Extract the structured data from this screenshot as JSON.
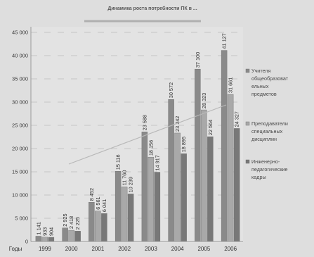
{
  "chart_data": {
    "type": "bar",
    "title": "Динамика роста потребности ПК в ...",
    "x_axis_label": "Годы",
    "categories": [
      "1999",
      "2000",
      "2001",
      "2002",
      "2003",
      "2004",
      "2005",
      "2006"
    ],
    "y_ticks": [
      "0",
      "5 000",
      "10 000",
      "15 000",
      "20 000",
      "25 000",
      "30 000",
      "35 000",
      "40 000",
      "45 000"
    ],
    "ylim": [
      0,
      45000
    ],
    "grid": "horizontal",
    "legend_position": "right",
    "series": [
      {
        "name": "Учителя общеобразовательных предметов",
        "legend_lines": [
          "Учителя",
          "общеобразоват",
          "ельных",
          "предметов"
        ],
        "values": [
          1141,
          2925,
          8452,
          15116,
          23588,
          30572,
          37100,
          41127
        ],
        "labels": [
          "1 141",
          "2 925",
          "8 452",
          "15 116",
          "23 588",
          "30 572",
          "37 100",
          "41 127"
        ],
        "color": "#8a8a8a"
      },
      {
        "name": "Преподаватели специальных дисциплин",
        "legend_lines": [
          "Преподаватели",
          "специальных",
          "дисциплин"
        ],
        "values": [
          933,
          2418,
          6561,
          11760,
          18156,
          23342,
          28323,
          31661
        ],
        "labels": [
          "933",
          "2 418",
          "6 561",
          "11 760",
          "18 156",
          "23 342",
          "28 323",
          "31 661"
        ],
        "color": "#a9a9a9"
      },
      {
        "name": "Инженерно-педагогические кадры",
        "legend_lines": [
          "Инженерно-",
          "педагогические",
          "кадры"
        ],
        "values": [
          904,
          2225,
          6041,
          10239,
          14917,
          18895,
          22564,
          24327
        ],
        "labels": [
          "904",
          "2 225",
          "6 041",
          "10 239",
          "14 917",
          "18 895",
          "22 564",
          "24 327"
        ],
        "color": "#787878"
      }
    ]
  }
}
